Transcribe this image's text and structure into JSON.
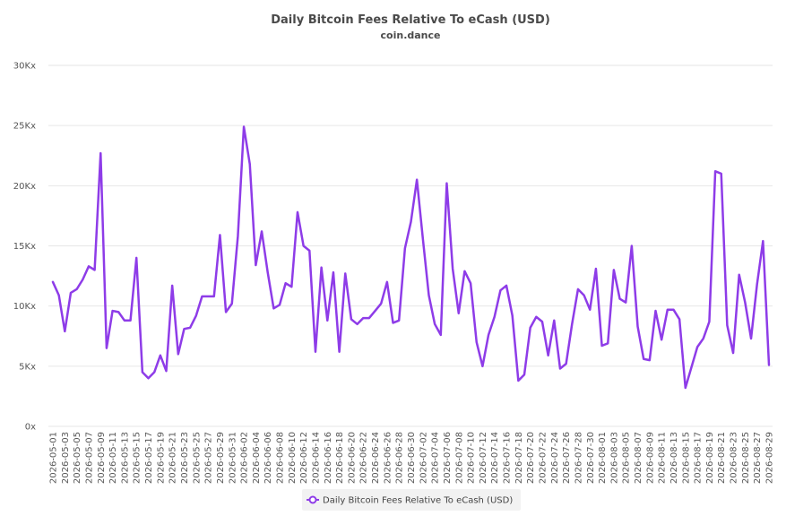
{
  "chart_data": {
    "type": "line",
    "title": "Daily Bitcoin Fees Relative To eCash (USD)",
    "subtitle": "coin.dance",
    "xlabel": "",
    "ylabel": "",
    "ylim": [
      0,
      30000
    ],
    "y_ticks": [
      {
        "value": 0,
        "label": "0x"
      },
      {
        "value": 5000,
        "label": "5Kx"
      },
      {
        "value": 10000,
        "label": "10Kx"
      },
      {
        "value": 15000,
        "label": "15Kx"
      },
      {
        "value": 20000,
        "label": "20Kx"
      },
      {
        "value": 25000,
        "label": "25Kx"
      },
      {
        "value": 30000,
        "label": "30Kx"
      }
    ],
    "x_tick_labels": [
      "2026-05-01",
      "2026-05-03",
      "2026-05-05",
      "2026-05-07",
      "2026-05-09",
      "2026-05-11",
      "2026-05-13",
      "2026-05-15",
      "2026-05-17",
      "2026-05-19",
      "2026-05-21",
      "2026-05-23",
      "2026-05-25",
      "2026-05-27",
      "2026-05-29",
      "2026-05-31",
      "2026-06-02",
      "2026-06-04",
      "2026-06-06",
      "2026-06-08",
      "2026-06-10",
      "2026-06-12",
      "2026-06-14",
      "2026-06-16",
      "2026-06-18",
      "2026-06-20",
      "2026-06-22",
      "2026-06-24",
      "2026-06-26",
      "2026-06-28",
      "2026-06-30",
      "2026-07-02",
      "2026-07-04",
      "2026-07-06",
      "2026-07-08",
      "2026-07-10",
      "2026-07-12",
      "2026-07-14",
      "2026-07-16",
      "2026-07-18",
      "2026-07-20",
      "2026-07-22",
      "2026-07-24",
      "2026-07-26",
      "2026-07-28",
      "2026-07-30",
      "2026-08-01",
      "2026-08-03",
      "2026-08-05",
      "2026-08-07",
      "2026-08-09",
      "2026-08-11",
      "2026-08-13",
      "2026-08-15",
      "2026-08-17",
      "2026-08-19",
      "2026-08-21",
      "2026-08-23",
      "2026-08-25",
      "2026-08-27",
      "2026-08-29"
    ],
    "x_start": "2026-05-01",
    "x_end": "2026-08-29",
    "grid": true,
    "legend_position": "bottom",
    "series": [
      {
        "name": "Daily Bitcoin Fees Relative To eCash (USD)",
        "color": "#8e3ce8",
        "values": [
          12000,
          10900,
          7900,
          11100,
          11400,
          12200,
          13300,
          13000,
          22700,
          6500,
          9600,
          9500,
          8800,
          8800,
          14000,
          4500,
          4000,
          4500,
          5900,
          4600,
          11700,
          6000,
          8100,
          8200,
          9200,
          10800,
          10800,
          10800,
          15900,
          9500,
          10200,
          15800,
          24900,
          21800,
          13400,
          16200,
          12800,
          9800,
          10100,
          11900,
          11600,
          17800,
          15000,
          14600,
          6200,
          13200,
          8800,
          12800,
          6200,
          12700,
          8900,
          8500,
          9000,
          9000,
          9600,
          10200,
          12000,
          8600,
          8800,
          14800,
          17000,
          20500,
          15600,
          10900,
          8500,
          7600,
          20200,
          13100,
          9400,
          12900,
          11900,
          7000,
          5000,
          7600,
          9100,
          11300,
          11700,
          9200,
          3800,
          4300,
          8200,
          9100,
          8700,
          5900,
          8800,
          4800,
          5200,
          8500,
          11400,
          10900,
          9700,
          13100,
          6700,
          6900,
          13000,
          10600,
          10300,
          15000,
          8300,
          5600,
          5500,
          9600,
          7200,
          9700,
          9700,
          8900,
          3200,
          4900,
          6600,
          7300,
          8700,
          21200,
          21000,
          8400,
          6100,
          12600,
          10300,
          7300,
          11800,
          15400,
          5100
        ]
      }
    ]
  }
}
